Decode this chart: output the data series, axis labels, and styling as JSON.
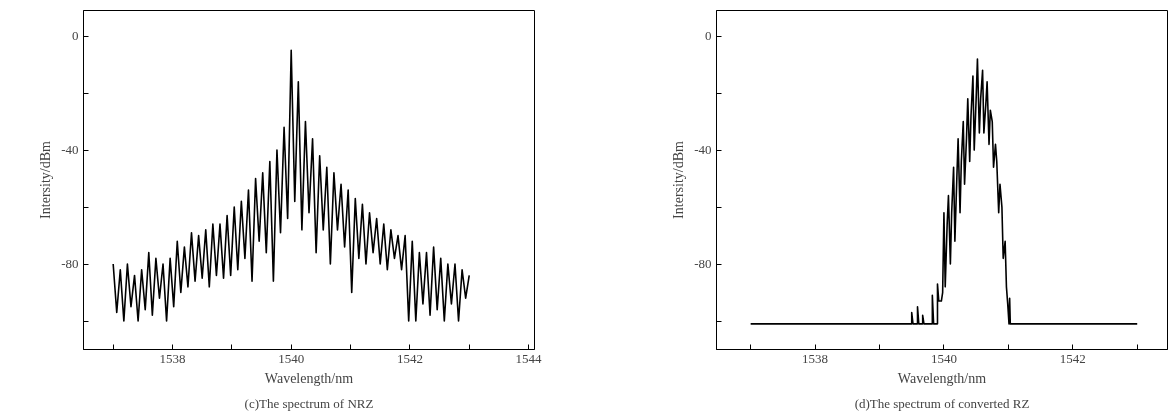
{
  "chart_data": [
    {
      "type": "line",
      "xlabel": "Wavelength/nm",
      "ylabel": "Intersity/dBm",
      "annotations": [
        "(c)The spectrum of NRZ"
      ],
      "xlim": [
        1536.5,
        1544.1
      ],
      "ylim": [
        -110,
        9
      ],
      "xticks": [
        {
          "value": 1537,
          "label": null
        },
        1538,
        {
          "value": 1539,
          "label": null
        },
        1540,
        {
          "value": 1541,
          "label": null
        },
        1542,
        {
          "value": 1543,
          "label": null
        },
        1544
      ],
      "yticks": [
        {
          "value": -100,
          "label": null
        },
        -80,
        {
          "value": -60,
          "label": null
        },
        -40,
        {
          "value": -20,
          "label": null
        },
        0
      ],
      "series": [
        {
          "color": "#000000",
          "x": [
            1537.0,
            1537.06,
            1537.12,
            1537.18,
            1537.24,
            1537.3,
            1537.36,
            1537.42,
            1537.48,
            1537.54,
            1537.6,
            1537.66,
            1537.72,
            1537.78,
            1537.84,
            1537.9,
            1537.96,
            1538.02,
            1538.08,
            1538.14,
            1538.2,
            1538.26,
            1538.32,
            1538.38,
            1538.44,
            1538.5,
            1538.56,
            1538.62,
            1538.68,
            1538.74,
            1538.8,
            1538.86,
            1538.92,
            1538.98,
            1539.04,
            1539.1,
            1539.16,
            1539.22,
            1539.28,
            1539.34,
            1539.4,
            1539.46,
            1539.52,
            1539.58,
            1539.64,
            1539.7,
            1539.76,
            1539.82,
            1539.88,
            1539.94,
            1540.0,
            1540.06,
            1540.12,
            1540.18,
            1540.24,
            1540.3,
            1540.36,
            1540.42,
            1540.48,
            1540.54,
            1540.6,
            1540.66,
            1540.72,
            1540.78,
            1540.84,
            1540.9,
            1540.96,
            1541.02,
            1541.08,
            1541.14,
            1541.2,
            1541.26,
            1541.32,
            1541.38,
            1541.44,
            1541.5,
            1541.56,
            1541.62,
            1541.68,
            1541.74,
            1541.8,
            1541.86,
            1541.92,
            1541.98,
            1542.04,
            1542.1,
            1542.16,
            1542.22,
            1542.28,
            1542.34,
            1542.4,
            1542.46,
            1542.52,
            1542.58,
            1542.64,
            1542.7,
            1542.76,
            1542.82,
            1542.88,
            1542.94,
            1543.0
          ],
          "values": [
            -80,
            -97,
            -82,
            -100,
            -80,
            -95,
            -84,
            -100,
            -82,
            -96,
            -76,
            -98,
            -78,
            -92,
            -80,
            -100,
            -78,
            -95,
            -72,
            -90,
            -74,
            -88,
            -69,
            -86,
            -70,
            -85,
            -68,
            -88,
            -66,
            -84,
            -66,
            -85,
            -63,
            -84,
            -60,
            -82,
            -58,
            -78,
            -54,
            -86,
            -50,
            -72,
            -48,
            -76,
            -44,
            -86,
            -40,
            -69,
            -32,
            -64,
            -5,
            -58,
            -16,
            -68,
            -30,
            -62,
            -36,
            -76,
            -42,
            -68,
            -46,
            -80,
            -48,
            -68,
            -52,
            -74,
            -54,
            -90,
            -57,
            -78,
            -59,
            -80,
            -62,
            -76,
            -64,
            -80,
            -66,
            -82,
            -68,
            -78,
            -70,
            -82,
            -70,
            -100,
            -72,
            -100,
            -76,
            -94,
            -76,
            -98,
            -74,
            -96,
            -78,
            -100,
            -80,
            -94,
            -80,
            -100,
            -82,
            -92,
            -84
          ]
        }
      ]
    },
    {
      "type": "line",
      "xlabel": "Wavelength/nm",
      "ylabel": "Intersity/dBm",
      "annotations": [
        "(d)The spectrum of converted RZ"
      ],
      "xlim": [
        1536.47,
        1543.47
      ],
      "ylim": [
        -110,
        9
      ],
      "xticks": [
        {
          "value": 1537,
          "label": null
        },
        1538,
        {
          "value": 1539,
          "label": null
        },
        1540,
        {
          "value": 1541,
          "label": null
        },
        1542,
        {
          "value": 1543,
          "label": null
        }
      ],
      "yticks": [
        {
          "value": -100,
          "label": null
        },
        -80,
        {
          "value": -60,
          "label": null
        },
        -40,
        {
          "value": -20,
          "label": null
        },
        0
      ],
      "series": [
        {
          "color": "#000000",
          "x": [
            1537.0,
            1539.5,
            1539.5,
            1539.52,
            1539.59,
            1539.59,
            1539.61,
            1539.67,
            1539.67,
            1539.69,
            1539.82,
            1539.82,
            1539.84,
            1539.9,
            1539.9,
            1539.92,
            1539.96,
            1539.98,
            1540.0,
            1540.02,
            1540.05,
            1540.07,
            1540.1,
            1540.12,
            1540.15,
            1540.17,
            1540.2,
            1540.22,
            1540.25,
            1540.27,
            1540.3,
            1540.32,
            1540.35,
            1540.37,
            1540.4,
            1540.42,
            1540.45,
            1540.47,
            1540.5,
            1540.52,
            1540.55,
            1540.57,
            1540.6,
            1540.62,
            1540.65,
            1540.67,
            1540.7,
            1540.72,
            1540.75,
            1540.77,
            1540.8,
            1540.82,
            1540.85,
            1540.87,
            1540.9,
            1540.92,
            1540.95,
            1540.97,
            1540.99,
            1541.01,
            1541.02,
            1541.03,
            1543.0
          ],
          "values": [
            -101,
            -101,
            -97,
            -101,
            -101,
            -95,
            -101,
            -101,
            -98,
            -101,
            -101,
            -91,
            -101,
            -101,
            -87,
            -93,
            -93,
            -90,
            -62,
            -88,
            -66,
            -56,
            -80,
            -62,
            -46,
            -72,
            -50,
            -36,
            -62,
            -44,
            -30,
            -52,
            -36,
            -22,
            -44,
            -28,
            -14,
            -40,
            -22,
            -8,
            -34,
            -22,
            -12,
            -34,
            -24,
            -16,
            -38,
            -26,
            -30,
            -46,
            -38,
            -44,
            -62,
            -52,
            -60,
            -78,
            -72,
            -88,
            -94,
            -101,
            -92,
            -101,
            -101
          ]
        }
      ]
    }
  ]
}
